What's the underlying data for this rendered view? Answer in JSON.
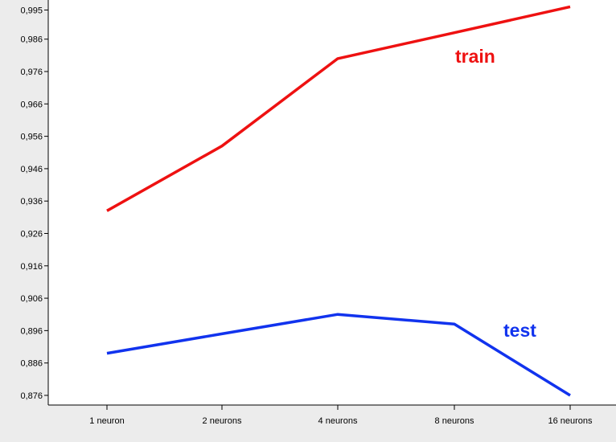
{
  "chart_data": {
    "type": "line",
    "categories": [
      "1 neuron",
      "2 neurons",
      "4 neurons",
      "8 neurons",
      "16 neurons"
    ],
    "series": [
      {
        "name": "train",
        "color": "#ee1111",
        "values": [
          0.933,
          0.953,
          0.98,
          0.988,
          0.996
        ]
      },
      {
        "name": "test",
        "color": "#1133ee",
        "values": [
          0.889,
          0.895,
          0.901,
          0.898,
          0.876
        ]
      }
    ],
    "yticks": [
      "0,995",
      "0,986",
      "0,976",
      "0,966",
      "0,956",
      "0,946",
      "0,936",
      "0,926",
      "0,916",
      "0,906",
      "0,896",
      "0,886",
      "0,876"
    ],
    "ylim": [
      0.875,
      0.9966
    ],
    "grid": false,
    "legend": "inline labels"
  }
}
